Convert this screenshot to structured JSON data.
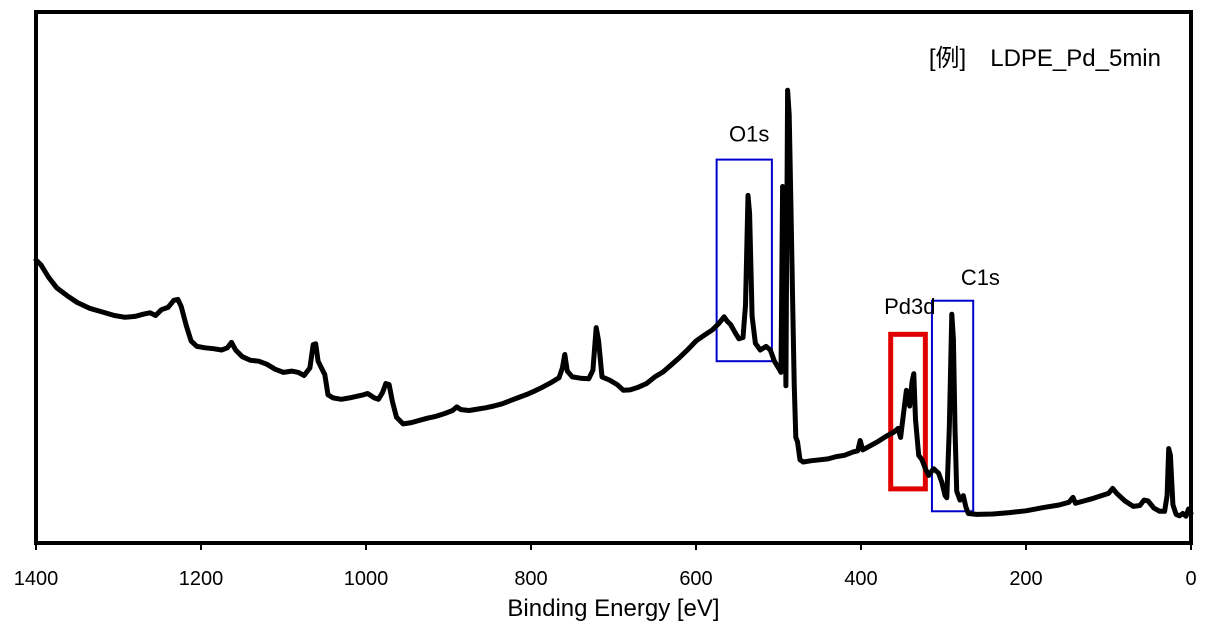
{
  "chart_data": {
    "type": "line",
    "title": "",
    "xlabel": "Binding Energy [eV]",
    "ylabel": "",
    "xlim": [
      1400,
      0
    ],
    "ylim": [
      0,
      100
    ],
    "x_reversed": true,
    "x_ticks": [
      "1400",
      "1200",
      "1000",
      "800",
      "600",
      "400",
      "200",
      "0"
    ],
    "grid": false,
    "sample_label": "[例]　LDPE_Pd_5min",
    "series": [
      {
        "name": "",
        "color": "#000000",
        "points": [
          [
            1400,
            57.6
          ],
          [
            1394,
            56.5
          ],
          [
            1385,
            53.8
          ],
          [
            1375,
            51.4
          ],
          [
            1362,
            49.6
          ],
          [
            1350,
            48.1
          ],
          [
            1335,
            46.8
          ],
          [
            1320,
            46.0
          ],
          [
            1305,
            45.2
          ],
          [
            1292,
            44.8
          ],
          [
            1280,
            45.0
          ],
          [
            1270,
            45.5
          ],
          [
            1262,
            45.8
          ],
          [
            1255,
            45.2
          ],
          [
            1248,
            46.5
          ],
          [
            1240,
            47.0
          ],
          [
            1233,
            48.6
          ],
          [
            1228,
            48.8
          ],
          [
            1224,
            47.2
          ],
          [
            1218,
            43.0
          ],
          [
            1212,
            39.5
          ],
          [
            1205,
            38.3
          ],
          [
            1195,
            38.0
          ],
          [
            1185,
            37.8
          ],
          [
            1175,
            37.5
          ],
          [
            1168,
            38.0
          ],
          [
            1163,
            39.2
          ],
          [
            1158,
            37.5
          ],
          [
            1150,
            36.0
          ],
          [
            1140,
            35.2
          ],
          [
            1130,
            35.0
          ],
          [
            1120,
            34.3
          ],
          [
            1110,
            33.2
          ],
          [
            1100,
            32.5
          ],
          [
            1090,
            32.8
          ],
          [
            1082,
            32.5
          ],
          [
            1075,
            31.8
          ],
          [
            1068,
            33.5
          ],
          [
            1064,
            38.7
          ],
          [
            1061,
            38.9
          ],
          [
            1058,
            35.0
          ],
          [
            1054,
            33.5
          ],
          [
            1050,
            32.0
          ],
          [
            1046,
            27.5
          ],
          [
            1040,
            26.8
          ],
          [
            1030,
            26.5
          ],
          [
            1020,
            26.8
          ],
          [
            1010,
            27.2
          ],
          [
            1003,
            27.5
          ],
          [
            998,
            27.8
          ],
          [
            990,
            26.8
          ],
          [
            985,
            26.5
          ],
          [
            980,
            28.0
          ],
          [
            976,
            30.0
          ],
          [
            972,
            29.8
          ],
          [
            968,
            26.0
          ],
          [
            963,
            22.5
          ],
          [
            955,
            21.0
          ],
          [
            945,
            21.3
          ],
          [
            935,
            21.8
          ],
          [
            925,
            22.3
          ],
          [
            915,
            22.7
          ],
          [
            905,
            23.3
          ],
          [
            895,
            24.0
          ],
          [
            890,
            24.8
          ],
          [
            885,
            24.2
          ],
          [
            875,
            24.0
          ],
          [
            865,
            24.3
          ],
          [
            855,
            24.6
          ],
          [
            845,
            25.0
          ],
          [
            835,
            25.5
          ],
          [
            825,
            26.2
          ],
          [
            815,
            26.9
          ],
          [
            805,
            27.6
          ],
          [
            795,
            28.4
          ],
          [
            785,
            29.3
          ],
          [
            775,
            30.3
          ],
          [
            766,
            31.3
          ],
          [
            762,
            33.5
          ],
          [
            759,
            36.5
          ],
          [
            756,
            32.8
          ],
          [
            750,
            31.5
          ],
          [
            740,
            31.2
          ],
          [
            730,
            31.1
          ],
          [
            725,
            33.0
          ],
          [
            721,
            42.5
          ],
          [
            718,
            39.5
          ],
          [
            714,
            31.5
          ],
          [
            705,
            30.8
          ],
          [
            695,
            29.7
          ],
          [
            688,
            28.5
          ],
          [
            680,
            28.6
          ],
          [
            670,
            29.2
          ],
          [
            660,
            30.0
          ],
          [
            650,
            31.5
          ],
          [
            640,
            32.6
          ],
          [
            630,
            34.2
          ],
          [
            620,
            35.8
          ],
          [
            610,
            37.6
          ],
          [
            600,
            39.5
          ],
          [
            590,
            40.8
          ],
          [
            580,
            42.0
          ],
          [
            572,
            43.5
          ],
          [
            566,
            44.9
          ],
          [
            562,
            43.9
          ],
          [
            558,
            43.2
          ],
          [
            553,
            41.5
          ],
          [
            548,
            40.0
          ],
          [
            543,
            40.3
          ],
          [
            540,
            47.5
          ],
          [
            537,
            72.0
          ],
          [
            535,
            68.0
          ],
          [
            532,
            45.0
          ],
          [
            528,
            39.0
          ],
          [
            522,
            37.5
          ],
          [
            515,
            38.3
          ],
          [
            510,
            37.5
          ],
          [
            505,
            35.0
          ],
          [
            500,
            33.5
          ],
          [
            497,
            32.5
          ],
          [
            495,
            74.0
          ],
          [
            493,
            73.0
          ],
          [
            491,
            29.5
          ],
          [
            489,
            95.5
          ],
          [
            487,
            90.0
          ],
          [
            485,
            70.0
          ],
          [
            483,
            50.0
          ],
          [
            481,
            30.0
          ],
          [
            479,
            18.0
          ],
          [
            477,
            17.0
          ],
          [
            474,
            13.0
          ],
          [
            470,
            12.5
          ],
          [
            460,
            12.8
          ],
          [
            450,
            13.0
          ],
          [
            440,
            13.2
          ],
          [
            430,
            13.7
          ],
          [
            420,
            14.0
          ],
          [
            410,
            14.7
          ],
          [
            404,
            15.0
          ],
          [
            401,
            17.3
          ],
          [
            398,
            15.2
          ],
          [
            390,
            16.0
          ],
          [
            380,
            17.0
          ],
          [
            370,
            18.2
          ],
          [
            360,
            19.2
          ],
          [
            355,
            20.0
          ],
          [
            352,
            18.0
          ],
          [
            348,
            24.0
          ],
          [
            345,
            28.5
          ],
          [
            343,
            27.0
          ],
          [
            341,
            25.0
          ],
          [
            338,
            30.5
          ],
          [
            336,
            32.2
          ],
          [
            334,
            22.0
          ],
          [
            330,
            14.0
          ],
          [
            326,
            13.0
          ],
          [
            322,
            11.0
          ],
          [
            318,
            9.5
          ],
          [
            312,
            11.0
          ],
          [
            306,
            10.0
          ],
          [
            302,
            8.0
          ],
          [
            298,
            5.0
          ],
          [
            296,
            4.5
          ],
          [
            293,
            20.0
          ],
          [
            290,
            45.5
          ],
          [
            288,
            40.0
          ],
          [
            286,
            20.0
          ],
          [
            284,
            6.0
          ],
          [
            280,
            4.0
          ],
          [
            276,
            5.0
          ],
          [
            273,
            2.5
          ],
          [
            270,
            1.0
          ],
          [
            260,
            0.8
          ],
          [
            240,
            0.9
          ],
          [
            220,
            1.2
          ],
          [
            200,
            1.6
          ],
          [
            180,
            2.3
          ],
          [
            160,
            2.9
          ],
          [
            148,
            3.5
          ],
          [
            143,
            4.6
          ],
          [
            140,
            3.3
          ],
          [
            130,
            3.8
          ],
          [
            120,
            4.3
          ],
          [
            110,
            4.9
          ],
          [
            100,
            5.5
          ],
          [
            95,
            6.6
          ],
          [
            90,
            5.5
          ],
          [
            80,
            3.8
          ],
          [
            70,
            2.6
          ],
          [
            62,
            2.8
          ],
          [
            57,
            4.0
          ],
          [
            52,
            3.8
          ],
          [
            45,
            2.2
          ],
          [
            38,
            1.5
          ],
          [
            32,
            1.5
          ],
          [
            29,
            5.0
          ],
          [
            27,
            15.5
          ],
          [
            25,
            14.0
          ],
          [
            22,
            3.0
          ],
          [
            18,
            0.8
          ],
          [
            14,
            0.5
          ],
          [
            10,
            1.0
          ],
          [
            6,
            0.4
          ],
          [
            3,
            2.0
          ],
          [
            0,
            1.0
          ]
        ]
      }
    ],
    "annotations": [
      {
        "label": "O1s",
        "box": {
          "x1": 575,
          "x2": 508,
          "y1": 35.0,
          "y2": 80.0
        },
        "color": "#0000cc",
        "label_at": [
          560,
          84
        ]
      },
      {
        "label": "C1s",
        "box": {
          "x1": 314,
          "x2": 264,
          "y1": 1.5,
          "y2": 48.5
        },
        "color": "#0000cc",
        "label_at": [
          279,
          52
        ]
      },
      {
        "label": "Pd3d",
        "box": {
          "x1": 364,
          "x2": 322,
          "y1": 6.5,
          "y2": 41.0
        },
        "color": "#e00000",
        "label_at": [
          372,
          45.5
        ]
      }
    ]
  }
}
